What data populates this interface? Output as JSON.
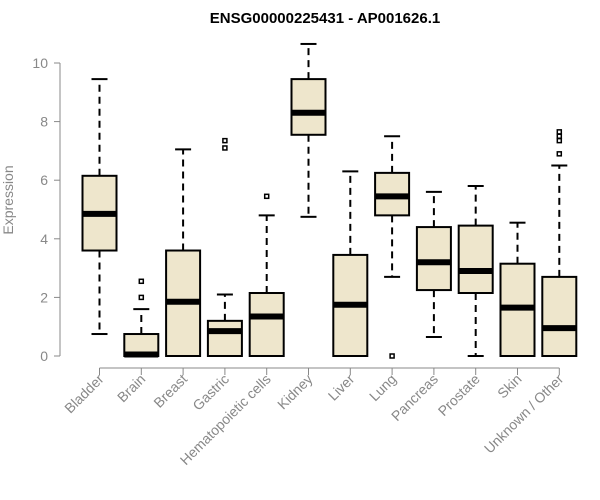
{
  "chart_data": {
    "type": "boxplot",
    "title": "ENSG00000225431 - AP001626.1",
    "ylabel": "Expression",
    "xlabel": "",
    "ylim": [
      0,
      10
    ],
    "yticks": [
      0,
      2,
      4,
      6,
      8,
      10
    ],
    "grid": false,
    "colors": {
      "box_fill": "#EEE6CC",
      "box_stroke": "#000000",
      "median": "#000000",
      "axis_text": "#888888"
    },
    "categories": [
      "Bladder",
      "Brain",
      "Breast",
      "Gastric",
      "Hematopoietic cells",
      "Kidney",
      "Liver",
      "Lung",
      "Pancreas",
      "Prostate",
      "Skin",
      "Unknown / Other"
    ],
    "boxes": [
      {
        "name": "Bladder",
        "whisker_low": 0.75,
        "q1": 3.6,
        "median": 4.85,
        "q3": 6.15,
        "whisker_high": 9.45,
        "outliers": []
      },
      {
        "name": "Brain",
        "whisker_low": 0.0,
        "q1": 0.0,
        "median": 0.05,
        "q3": 0.75,
        "whisker_high": 1.6,
        "outliers": [
          2.55,
          2.0
        ]
      },
      {
        "name": "Breast",
        "whisker_low": 0.0,
        "q1": 0.0,
        "median": 1.85,
        "q3": 3.6,
        "whisker_high": 7.05,
        "outliers": []
      },
      {
        "name": "Gastric",
        "whisker_low": 0.0,
        "q1": 0.0,
        "median": 0.85,
        "q3": 1.2,
        "whisker_high": 2.1,
        "outliers": [
          7.35,
          7.1
        ]
      },
      {
        "name": "Hematopoietic cells",
        "whisker_low": 0.0,
        "q1": 0.0,
        "median": 1.35,
        "q3": 2.15,
        "whisker_high": 4.8,
        "outliers": [
          5.45
        ]
      },
      {
        "name": "Kidney",
        "whisker_low": 4.75,
        "q1": 7.55,
        "median": 8.3,
        "q3": 9.45,
        "whisker_high": 10.65,
        "outliers": []
      },
      {
        "name": "Liver",
        "whisker_low": 0.0,
        "q1": 0.0,
        "median": 1.75,
        "q3": 3.45,
        "whisker_high": 6.3,
        "outliers": []
      },
      {
        "name": "Lung",
        "whisker_low": 2.7,
        "q1": 4.8,
        "median": 5.45,
        "q3": 6.25,
        "whisker_high": 7.5,
        "outliers": [
          0.0
        ]
      },
      {
        "name": "Pancreas",
        "whisker_low": 0.65,
        "q1": 2.25,
        "median": 3.2,
        "q3": 4.4,
        "whisker_high": 5.6,
        "outliers": []
      },
      {
        "name": "Prostate",
        "whisker_low": 0.0,
        "q1": 2.15,
        "median": 2.9,
        "q3": 4.45,
        "whisker_high": 5.8,
        "outliers": []
      },
      {
        "name": "Skin",
        "whisker_low": 0.0,
        "q1": 0.0,
        "median": 1.65,
        "q3": 3.15,
        "whisker_high": 4.55,
        "outliers": []
      },
      {
        "name": "Unknown / Other",
        "whisker_low": 0.0,
        "q1": 0.0,
        "median": 0.95,
        "q3": 2.7,
        "whisker_high": 6.5,
        "outliers": [
          7.65,
          7.5,
          7.35,
          6.9
        ]
      }
    ]
  }
}
